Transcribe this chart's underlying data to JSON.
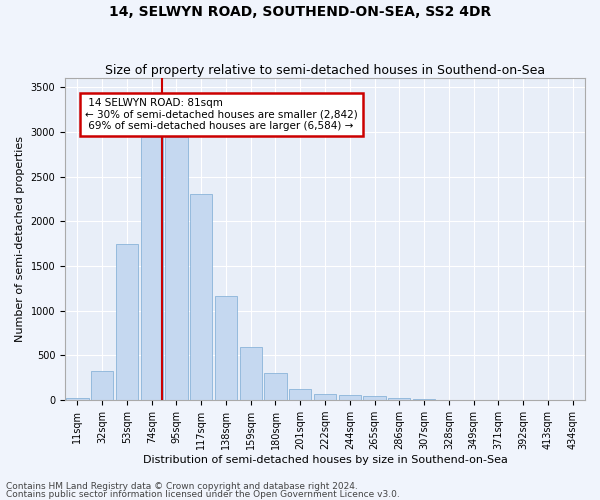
{
  "title": "14, SELWYN ROAD, SOUTHEND-ON-SEA, SS2 4DR",
  "subtitle": "Size of property relative to semi-detached houses in Southend-on-Sea",
  "xlabel": "Distribution of semi-detached houses by size in Southend-on-Sea",
  "ylabel": "Number of semi-detached properties",
  "footnote1": "Contains HM Land Registry data © Crown copyright and database right 2024.",
  "footnote2": "Contains public sector information licensed under the Open Government Licence v3.0.",
  "bar_labels": [
    "11sqm",
    "32sqm",
    "53sqm",
    "74sqm",
    "95sqm",
    "117sqm",
    "138sqm",
    "159sqm",
    "180sqm",
    "201sqm",
    "222sqm",
    "244sqm",
    "265sqm",
    "286sqm",
    "307sqm",
    "328sqm",
    "349sqm",
    "371sqm",
    "392sqm",
    "413sqm",
    "434sqm"
  ],
  "bar_values": [
    20,
    330,
    1750,
    2940,
    2940,
    2300,
    1160,
    590,
    300,
    130,
    70,
    55,
    50,
    20,
    10,
    5,
    3,
    2,
    1,
    1,
    1
  ],
  "bar_color": "#c5d8f0",
  "bar_edge_color": "#7baad4",
  "property_label": "14 SELWYN ROAD: 81sqm",
  "smaller_pct": 30,
  "smaller_count": "2,842",
  "larger_pct": 69,
  "larger_count": "6,584",
  "vline_x_index": 3.42,
  "annotation_box_color": "#ffffff",
  "annotation_box_edge": "#cc0000",
  "vline_color": "#cc0000",
  "ylim": [
    0,
    3600
  ],
  "yticks": [
    0,
    500,
    1000,
    1500,
    2000,
    2500,
    3000,
    3500
  ],
  "bg_color": "#e8eef8",
  "grid_color": "#ffffff",
  "title_fontsize": 10,
  "subtitle_fontsize": 9,
  "axis_label_fontsize": 8,
  "tick_fontsize": 7,
  "annot_fontsize": 7.5,
  "footnote_fontsize": 6.5
}
